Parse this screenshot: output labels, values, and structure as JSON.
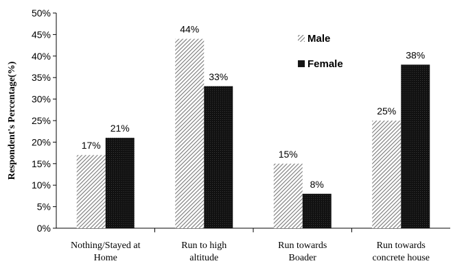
{
  "chart_data": {
    "type": "bar",
    "ylabel": "Respondent's Percentage(%)",
    "ylim": [
      0,
      50
    ],
    "yticks": [
      "0%",
      "5%",
      "10%",
      "15%",
      "20%",
      "25%",
      "30%",
      "35%",
      "40%",
      "45%",
      "50%"
    ],
    "categories": [
      [
        "Nothing/Stayed at",
        "Home"
      ],
      [
        "Run to high",
        "altitude"
      ],
      [
        "Run towards",
        "Boader"
      ],
      [
        "Run towards",
        "concrete house"
      ]
    ],
    "series": [
      {
        "name": "Male",
        "values": [
          17,
          44,
          15,
          25
        ],
        "labels": [
          "17%",
          "44%",
          "15%",
          "25%"
        ],
        "pattern": "hatch"
      },
      {
        "name": "Female",
        "values": [
          21,
          33,
          8,
          38
        ],
        "labels": [
          "21%",
          "33%",
          "8%",
          "38%"
        ],
        "pattern": "dark"
      }
    ],
    "legend_position": "top-right-inside",
    "grid": false
  }
}
